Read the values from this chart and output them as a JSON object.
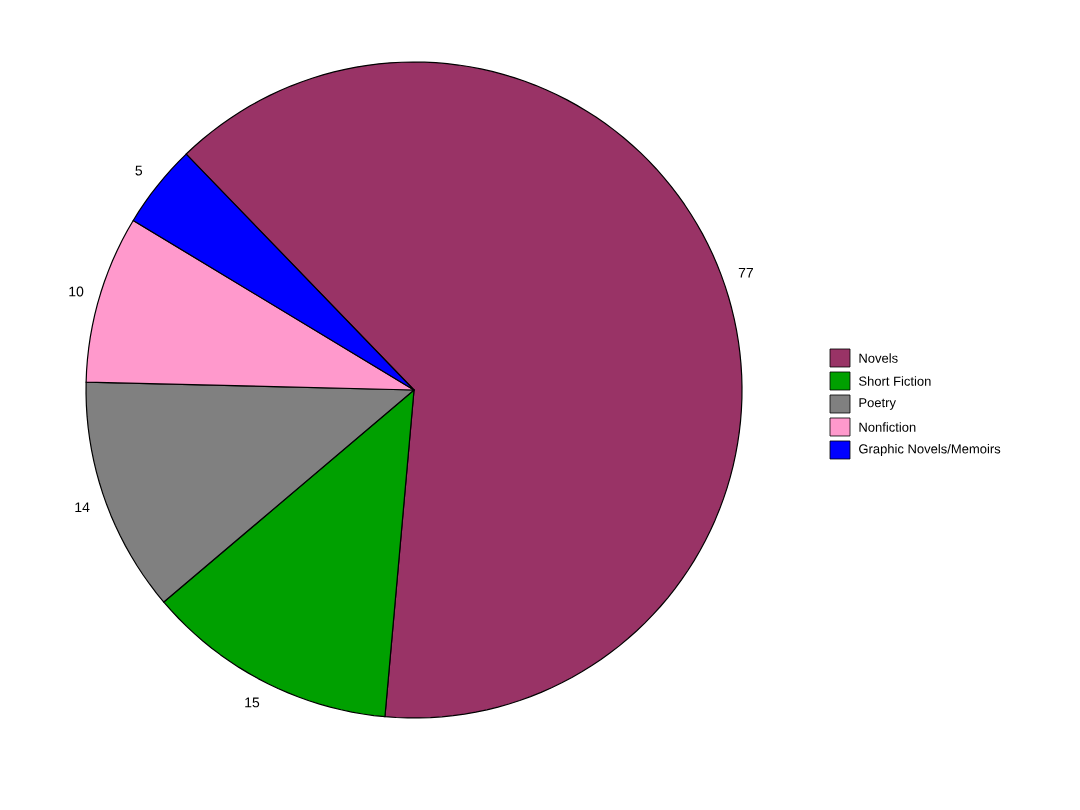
{
  "chart_data": {
    "type": "pie",
    "categories": [
      "Novels",
      "Short Fiction",
      "Poetry",
      "Nonfiction",
      "Graphic Novels/Memoirs"
    ],
    "values": [
      77,
      15,
      14,
      10,
      5
    ],
    "colors": [
      "#993366",
      "#00a000",
      "#808080",
      "#ff99cc",
      "#0000ff"
    ],
    "data_labels": true,
    "legend": "right"
  }
}
